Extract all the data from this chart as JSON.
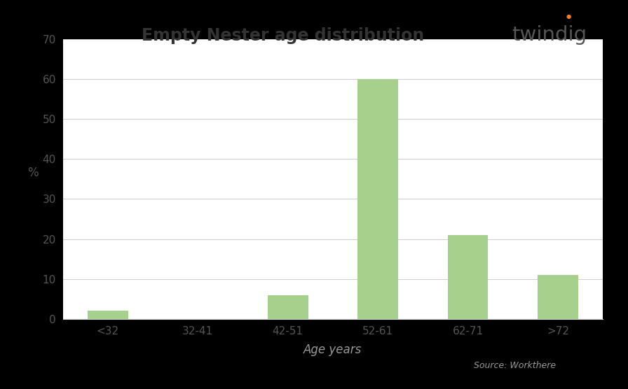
{
  "title": "Empty Nester age distribution",
  "categories": [
    "<32",
    "32-41",
    "42-51",
    "52-61",
    "62-71",
    ">72"
  ],
  "values": [
    2,
    0,
    6,
    60,
    21,
    11
  ],
  "bar_color": "#a8d08d",
  "ylabel": "%",
  "xlabel": "Age years",
  "source_text": "Source: Workthere",
  "twindig_text": "twindig",
  "ylim": [
    0,
    70
  ],
  "yticks": [
    0,
    10,
    20,
    30,
    40,
    50,
    60,
    70
  ],
  "outer_bg_color": "#000000",
  "plot_bg_color": "#ffffff",
  "grid_color": "#d0d0d0",
  "title_fontsize": 17,
  "tick_fontsize": 11,
  "axis_label_fontsize": 12,
  "title_color": "#333333",
  "tick_color": "#555555",
  "ylabel_color": "#555555",
  "xlabel_color": "#999999",
  "source_color": "#999999",
  "twindig_color": "#555555",
  "twindig_dot_color": "#f4821e"
}
